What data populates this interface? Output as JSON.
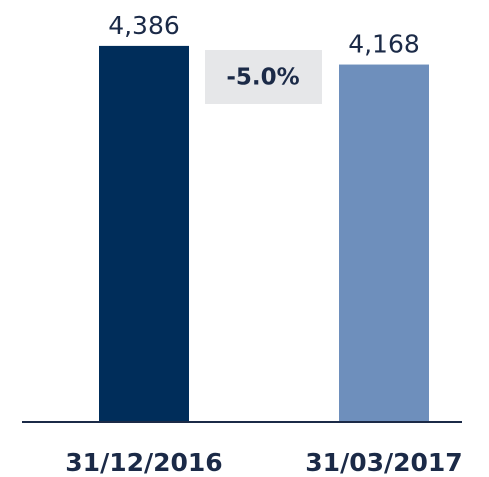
{
  "chart_data": {
    "type": "bar",
    "categories": [
      "31/12/2016",
      "31/03/2017"
    ],
    "values": [
      4386,
      4168
    ],
    "value_labels": [
      "4,386",
      "4,168"
    ],
    "colors": [
      "#002d5a",
      "#6e8fbc"
    ],
    "annotation": "-5.0%",
    "ylim": [
      0,
      4600
    ]
  }
}
